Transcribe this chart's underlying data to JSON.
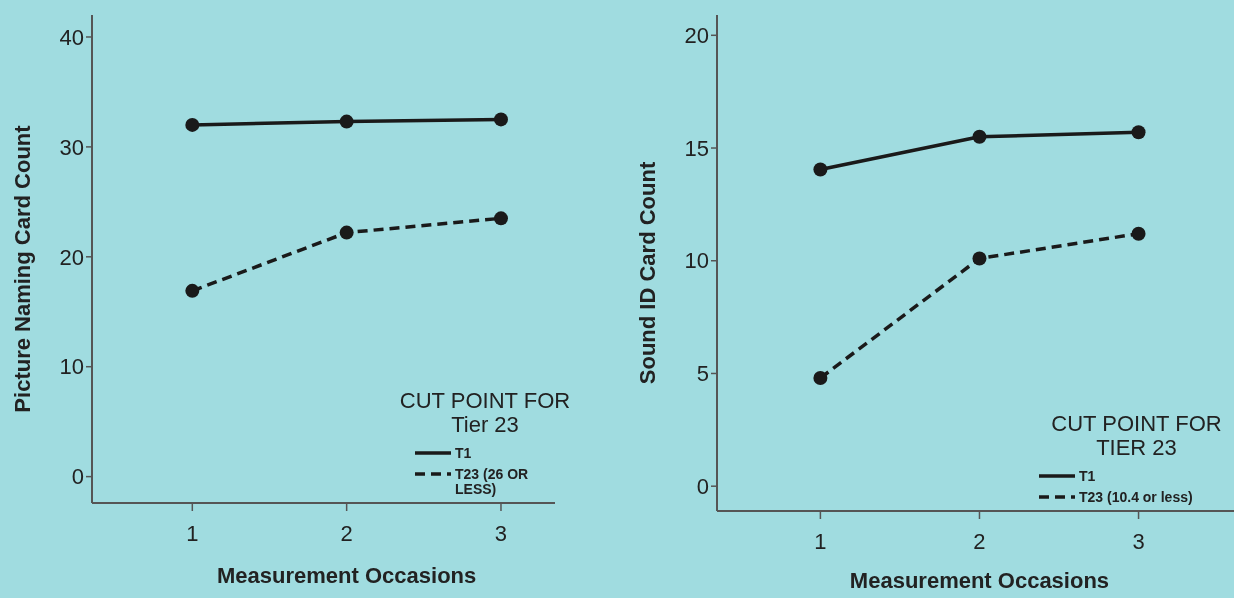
{
  "chart_data": [
    {
      "type": "line",
      "xlabel": "Measurement Occasions",
      "ylabel": "Picture Naming Card Count",
      "x": [
        1,
        2,
        3
      ],
      "xlim": [
        0.35,
        3.35
      ],
      "xticks": [
        1,
        2,
        3
      ],
      "ylim": [
        -2.4,
        42
      ],
      "yticks": [
        0,
        10,
        20,
        30,
        40
      ],
      "legend": "bottom right",
      "legend_title": "CUT POINT FOR Tier 23",
      "marker": "circle",
      "grid": false,
      "series": [
        {
          "name": "T1",
          "color": "#1a1a1a",
          "line_style": "solid",
          "values": [
            32.0,
            32.3,
            32.5
          ]
        },
        {
          "name": "T23 (26 OR LESS)",
          "color": "#1a1a1a",
          "line_style": "dashed",
          "values": [
            16.9,
            22.2,
            23.5
          ]
        }
      ]
    },
    {
      "type": "line",
      "xlabel": "Measurement Occasions",
      "ylabel": "Sound ID Card Count",
      "x": [
        1,
        2,
        3
      ],
      "xlim": [
        0.35,
        3.6
      ],
      "xticks": [
        1,
        2,
        3
      ],
      "ylim": [
        -1.1,
        20.9
      ],
      "yticks": [
        0,
        5,
        10,
        15,
        20
      ],
      "legend": "bottom right",
      "legend_title": "CUT POINT FOR TIER 23",
      "marker": "circle",
      "grid": false,
      "series": [
        {
          "name": "T1",
          "color": "#1a1a1a",
          "line_style": "solid",
          "values": [
            14.05,
            15.5,
            15.7
          ]
        },
        {
          "name": "T23 (10.4 or less)",
          "color": "#1a1a1a",
          "line_style": "dashed",
          "values": [
            4.8,
            10.1,
            11.2
          ]
        }
      ]
    }
  ]
}
